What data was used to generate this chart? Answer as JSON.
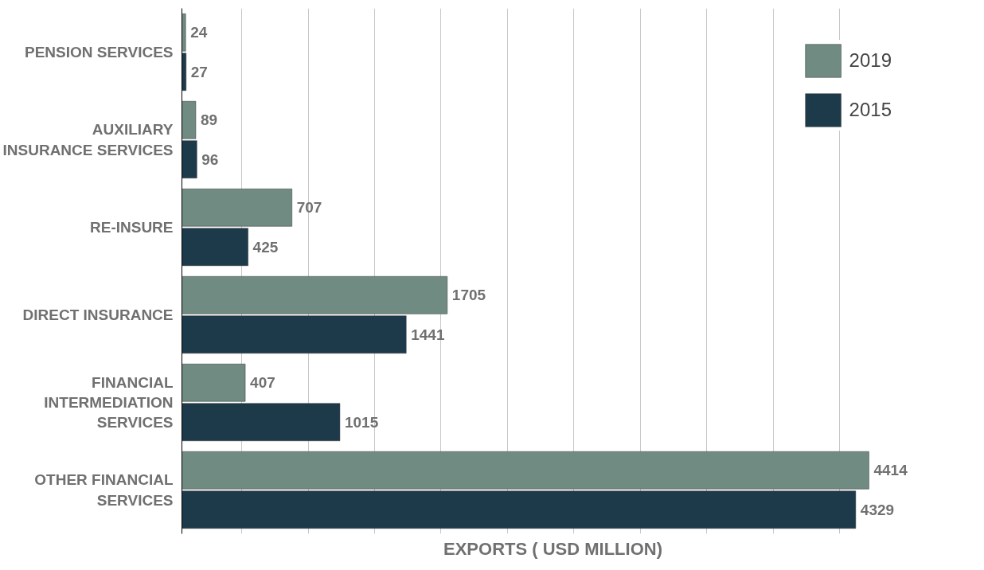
{
  "chart_data": {
    "type": "bar",
    "orientation": "horizontal",
    "categories": [
      "PENSION SERVICES",
      "AUXILIARY INSURANCE SERVICES",
      "RE-INSURE",
      "DIRECT INSURANCE",
      "FINANCIAL INTERMEDIATION SERVICES",
      "OTHER FINANCIAL SERVICES"
    ],
    "series": [
      {
        "name": "2019",
        "color": "#6f8b82",
        "values": [
          24,
          89,
          707,
          1705,
          407,
          4414
        ]
      },
      {
        "name": "2015",
        "color": "#1d3a4b",
        "values": [
          27,
          96,
          425,
          1441,
          1015,
          4329
        ]
      }
    ],
    "xlabel": "EXPORTS ( USD MILLION)",
    "xticks": [
      {
        "value": 384,
        "label": null
      },
      {
        "value": 811,
        "label": null
      },
      {
        "value": 1238,
        "label": null
      },
      {
        "value": 1664,
        "label": null
      },
      {
        "value": 2091,
        "label": null
      },
      {
        "value": 2518,
        "label": null
      },
      {
        "value": 2945,
        "label": null
      },
      {
        "value": 3371,
        "label": null
      },
      {
        "value": 3798,
        "label": null
      },
      {
        "value": 4225,
        "label": null
      }
    ],
    "tick_labels": "y",
    "grid": "x",
    "legend": "top right",
    "data_labels": true
  }
}
